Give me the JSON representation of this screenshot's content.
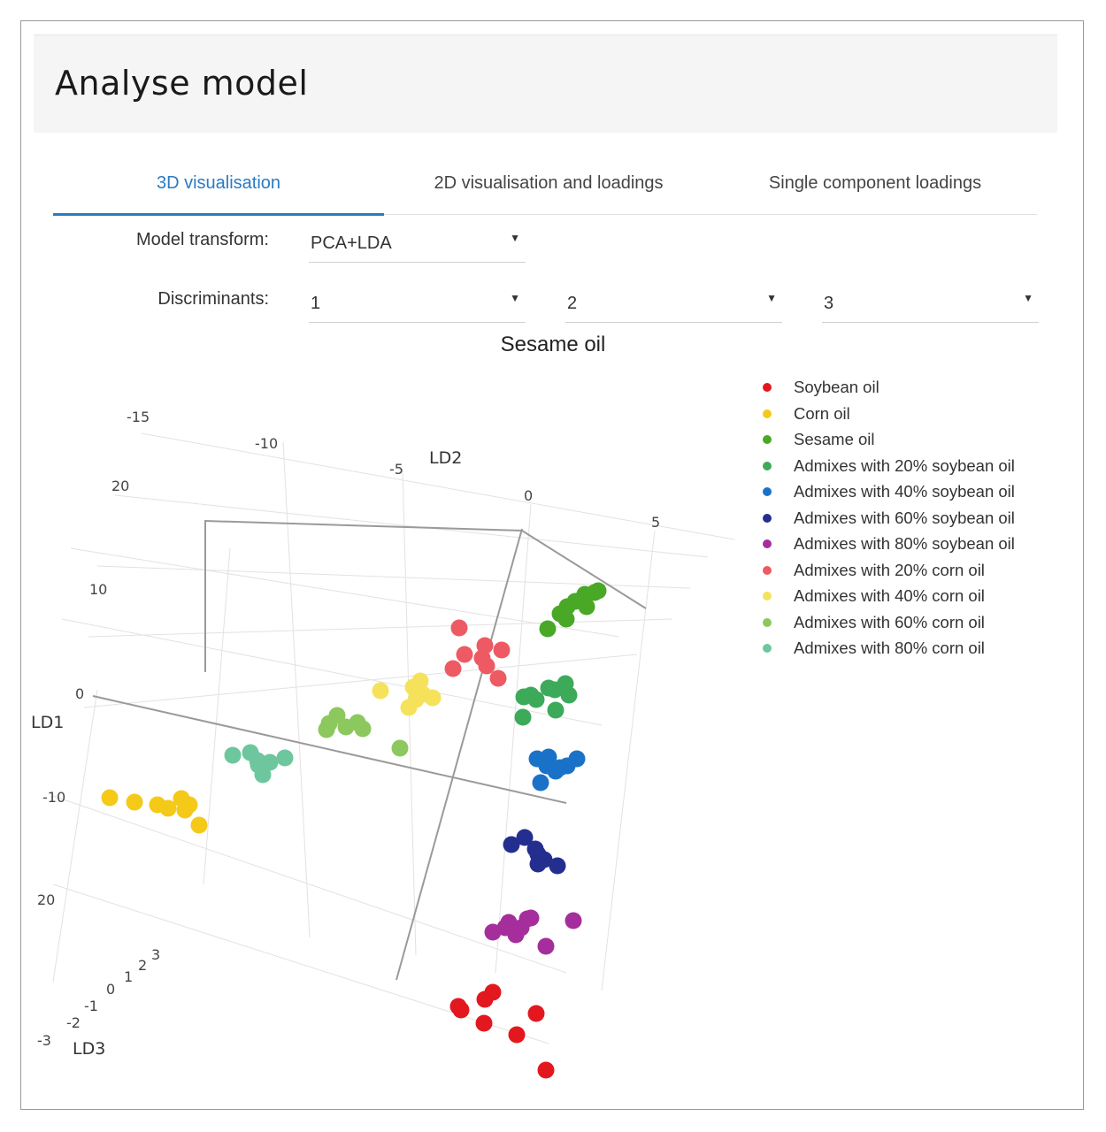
{
  "header": {
    "title": "Analyse model"
  },
  "tabs": [
    {
      "label": "3D visualisation",
      "active": true
    },
    {
      "label": "2D visualisation and loadings",
      "active": false
    },
    {
      "label": "Single component loadings",
      "active": false
    }
  ],
  "form": {
    "transform_label": "Model transform:",
    "transform_value": "PCA+LDA",
    "discriminants_label": "Discriminants:",
    "discriminants": [
      "1",
      "2",
      "3"
    ]
  },
  "colors": {
    "accent": "#2a7bc2"
  },
  "chart_data": {
    "type": "scatter",
    "projection": "3d",
    "title": "Sesame oil",
    "axes": {
      "LD1": {
        "label": "LD1",
        "ticks": [
          "20",
          "10",
          "0",
          "-10",
          "20"
        ]
      },
      "LD2": {
        "label": "LD2",
        "ticks": [
          "-15",
          "-10",
          "-5",
          "0",
          "5"
        ]
      },
      "LD3": {
        "label": "LD3",
        "ticks": [
          "-3",
          "-2",
          "-1",
          "0",
          "1",
          "2",
          "3"
        ]
      }
    },
    "legend_position": "top-right",
    "series": [
      {
        "name": "Soybean oil",
        "color": "#e3181f",
        "points": [
          [
            521,
            1142
          ],
          [
            548,
            1130
          ],
          [
            557,
            1122
          ],
          [
            547,
            1157
          ],
          [
            584,
            1170
          ],
          [
            606,
            1146
          ],
          [
            617,
            1210
          ],
          [
            518,
            1138
          ]
        ]
      },
      {
        "name": "Corn oil",
        "color": "#f5c918",
        "points": [
          [
            124,
            902
          ],
          [
            152,
            907
          ],
          [
            178,
            910
          ],
          [
            190,
            914
          ],
          [
            205,
            903
          ],
          [
            214,
            910
          ],
          [
            225,
            933
          ],
          [
            209,
            916
          ]
        ]
      },
      {
        "name": "Sesame oil",
        "color": "#4aa827",
        "points": [
          [
            619,
            711
          ],
          [
            640,
            700
          ],
          [
            641,
            686
          ],
          [
            650,
            680
          ],
          [
            657,
            678
          ],
          [
            663,
            686
          ],
          [
            672,
            670
          ],
          [
            676,
            668
          ],
          [
            661,
            672
          ],
          [
            633,
            694
          ]
        ]
      },
      {
        "name": "Admixes with 20% soybean oil",
        "color": "#3daa5a",
        "points": [
          [
            592,
            788
          ],
          [
            600,
            786
          ],
          [
            591,
            811
          ],
          [
            620,
            778
          ],
          [
            639,
            773
          ],
          [
            628,
            803
          ],
          [
            643,
            786
          ],
          [
            627,
            780
          ],
          [
            606,
            791
          ]
        ]
      },
      {
        "name": "Admixes with 40% soybean oil",
        "color": "#1a72c8",
        "points": [
          [
            607,
            858
          ],
          [
            620,
            856
          ],
          [
            611,
            885
          ],
          [
            628,
            872
          ],
          [
            641,
            866
          ],
          [
            652,
            858
          ],
          [
            618,
            866
          ],
          [
            633,
            868
          ]
        ]
      },
      {
        "name": "Admixes with 60% soybean oil",
        "color": "#242e8e",
        "points": [
          [
            578,
            955
          ],
          [
            593,
            947
          ],
          [
            608,
            966
          ],
          [
            608,
            977
          ],
          [
            615,
            972
          ],
          [
            630,
            979
          ],
          [
            605,
            960
          ]
        ]
      },
      {
        "name": "Admixes with 80% soybean oil",
        "color": "#a52e9c",
        "points": [
          [
            557,
            1054
          ],
          [
            571,
            1049
          ],
          [
            583,
            1057
          ],
          [
            596,
            1039
          ],
          [
            600,
            1038
          ],
          [
            589,
            1049
          ],
          [
            617,
            1070
          ],
          [
            648,
            1041
          ],
          [
            575,
            1043
          ]
        ]
      },
      {
        "name": "Admixes with 20% corn oil",
        "color": "#ee5a63",
        "points": [
          [
            519,
            710
          ],
          [
            525,
            740
          ],
          [
            548,
            730
          ],
          [
            550,
            753
          ],
          [
            563,
            767
          ],
          [
            567,
            735
          ],
          [
            512,
            756
          ],
          [
            545,
            744
          ]
        ]
      },
      {
        "name": "Admixes with 40% corn oil",
        "color": "#f5e25a",
        "points": [
          [
            430,
            781
          ],
          [
            475,
            770
          ],
          [
            489,
            789
          ],
          [
            478,
            785
          ],
          [
            462,
            800
          ],
          [
            470,
            791
          ],
          [
            467,
            777
          ]
        ]
      },
      {
        "name": "Admixes with 60% corn oil",
        "color": "#8cc85e",
        "points": [
          [
            369,
            825
          ],
          [
            381,
            809
          ],
          [
            391,
            822
          ],
          [
            404,
            817
          ],
          [
            410,
            824
          ],
          [
            452,
            846
          ],
          [
            372,
            818
          ]
        ]
      },
      {
        "name": "Admixes with 80% corn oil",
        "color": "#6ec69e",
        "points": [
          [
            263,
            854
          ],
          [
            283,
            851
          ],
          [
            292,
            865
          ],
          [
            297,
            876
          ],
          [
            305,
            862
          ],
          [
            322,
            857
          ],
          [
            291,
            860
          ]
        ]
      }
    ]
  }
}
